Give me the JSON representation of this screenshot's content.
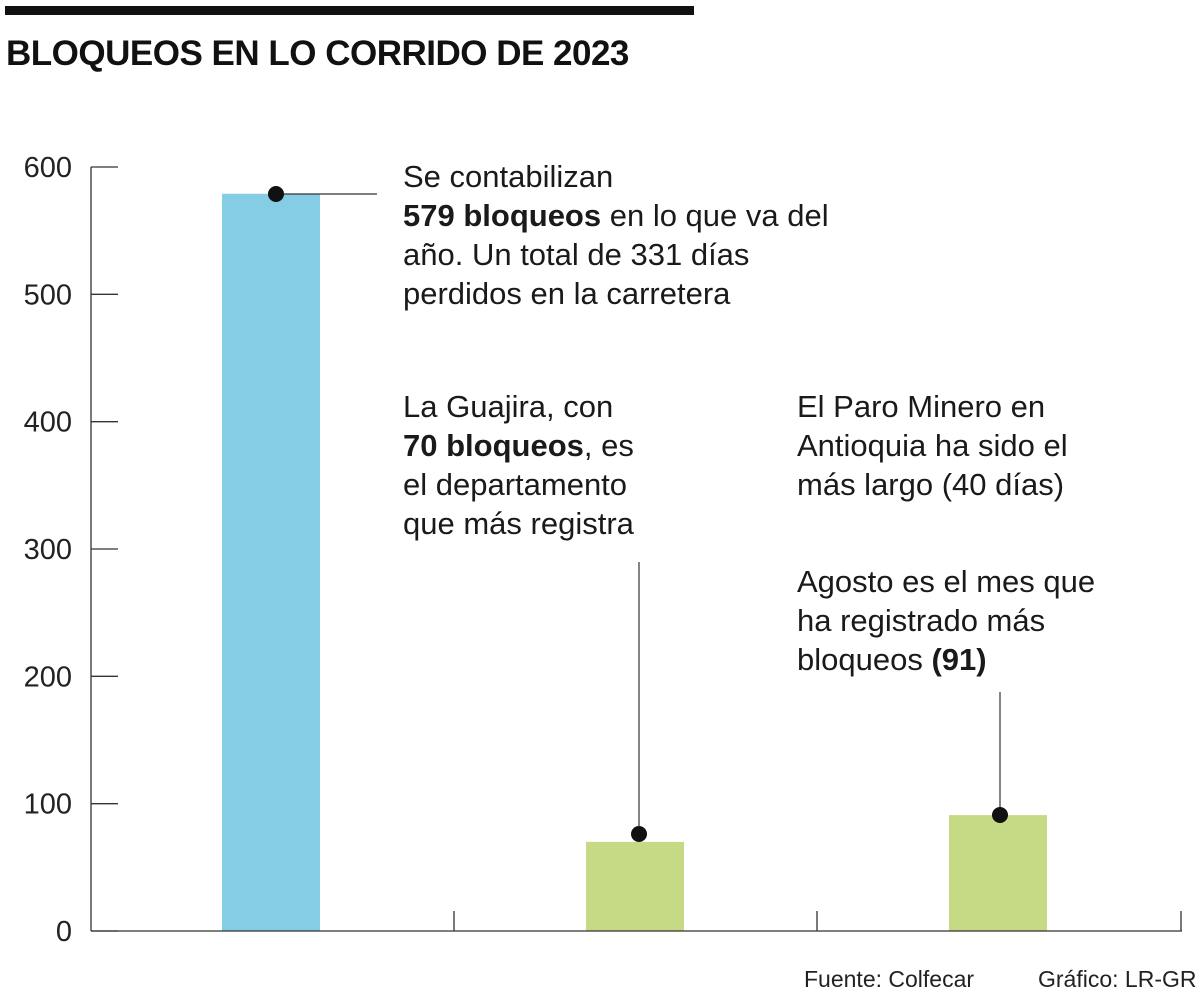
{
  "title": "BLOQUEOS EN LO CORRIDO DE 2023",
  "colors": {
    "bar_total": "#85cde4",
    "bar_other": "#c6d984",
    "axis": "#333333",
    "dot": "#111111"
  },
  "annotations": {
    "total": {
      "line1": "Se contabilizan",
      "bold": "579 bloqueos",
      "rest1": " en lo que va del",
      "line3": "año. Un total de 331 días",
      "line4": "perdidos en la carretera"
    },
    "guajira": {
      "line1": "La Guajira, con",
      "bold": "70 bloqueos",
      "rest1": ", es",
      "line3": "el departamento",
      "line4": "que más registra"
    },
    "paro": {
      "line1": "El Paro Minero en",
      "line2": "Antioquia ha sido el",
      "line3": "más largo (40 días)"
    },
    "agosto": {
      "line1": "Agosto es el mes que",
      "line2": "ha registrado más",
      "line3a": "bloqueos ",
      "bold": "(91)"
    }
  },
  "footer": {
    "source": "Fuente: Colfecar",
    "credit": "Gráfico: LR-GR"
  },
  "chart_data": {
    "type": "bar",
    "title": "BLOQUEOS EN LO CORRIDO DE 2023",
    "categories": [
      "",
      "",
      ""
    ],
    "values": [
      579,
      70,
      91
    ],
    "ylim": [
      0,
      600
    ],
    "yticks": [
      0,
      100,
      200,
      300,
      400,
      500,
      600
    ],
    "grid": false,
    "legend": "none"
  }
}
